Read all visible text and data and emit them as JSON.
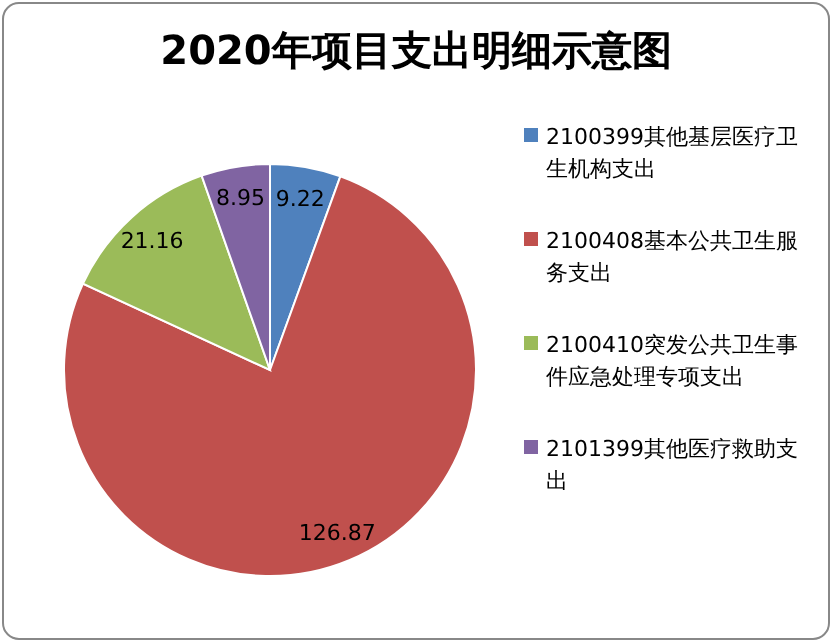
{
  "chart_data": {
    "type": "pie",
    "title": "2020年项目支出明细示意图",
    "categories": [
      "2100399其他基层医疗卫生机构支出",
      "2100408基本公共卫生服务支出",
      "2100410突发公共卫生事件应急处理专项支出",
      "2101399其他医疗救助支出"
    ],
    "values": [
      9.22,
      126.87,
      21.16,
      8.95
    ],
    "colors": [
      "#4f81bd",
      "#c0504d",
      "#9bbb59",
      "#8064a2"
    ],
    "data_labels": true,
    "legend": "right"
  }
}
